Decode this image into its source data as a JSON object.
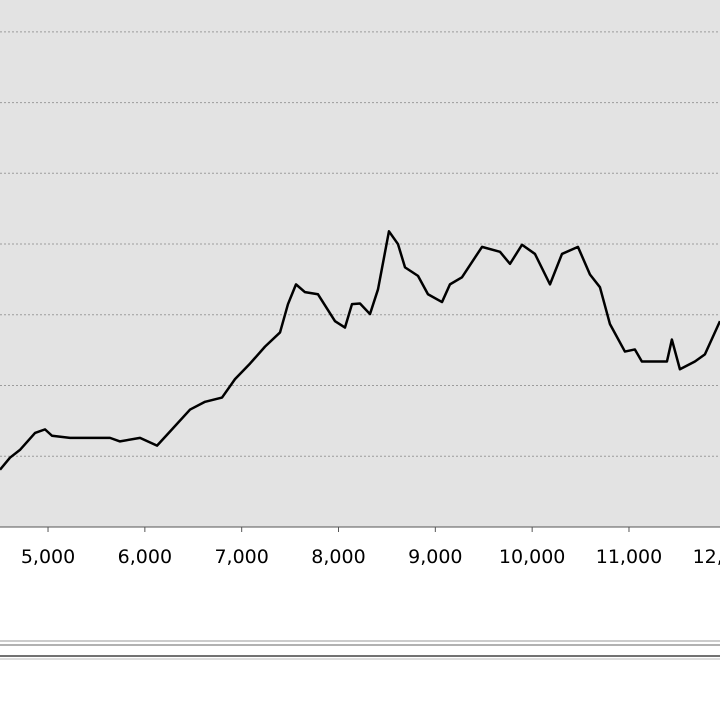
{
  "chart_data": {
    "type": "line",
    "x": [
      4504,
      4607,
      4710,
      4866,
      4969,
      5041,
      5227,
      5433,
      5640,
      5743,
      5950,
      6126,
      6260,
      6467,
      6622,
      6797,
      6931,
      7086,
      7241,
      7396,
      7478,
      7561,
      7654,
      7788,
      7964,
      8067,
      8139,
      8222,
      8325,
      8408,
      8521,
      8614,
      8687,
      8821,
      8924,
      9069,
      9151,
      9275,
      9482,
      9668,
      9771,
      9895,
      10029,
      10184,
      10308,
      10473,
      10597,
      10700,
      10803,
      10958,
      11061,
      11133,
      11392,
      11443,
      11526,
      11681,
      11784,
      11940
    ],
    "series": [
      {
        "color": "#000000",
        "values": [
          0.81,
          0.98,
          1.09,
          1.33,
          1.38,
          1.29,
          1.26,
          1.26,
          1.26,
          1.21,
          1.26,
          1.15,
          1.35,
          1.66,
          1.77,
          1.83,
          2.09,
          2.31,
          2.55,
          2.75,
          3.15,
          3.43,
          3.32,
          3.29,
          2.91,
          2.82,
          3.15,
          3.16,
          3.01,
          3.36,
          4.18,
          4.0,
          3.67,
          3.55,
          3.29,
          3.18,
          3.43,
          3.53,
          3.96,
          3.89,
          3.72,
          3.99,
          3.86,
          3.43,
          3.86,
          3.96,
          3.57,
          3.39,
          2.87,
          2.48,
          2.51,
          2.34,
          2.34,
          2.65,
          2.23,
          2.34,
          2.44,
          2.91
        ]
      }
    ],
    "xlim": [
      4504,
      11940
    ],
    "xticks": [
      {
        "value": 5000,
        "label": "5,000"
      },
      {
        "value": 6000,
        "label": "6,000"
      },
      {
        "value": 7000,
        "label": "7,000"
      },
      {
        "value": 8000,
        "label": "8,000"
      },
      {
        "value": 9000,
        "label": "9,000"
      },
      {
        "value": 10000,
        "label": "10,000"
      },
      {
        "value": 11000,
        "label": "11,000"
      },
      {
        "value": 12000,
        "label": "12,000"
      }
    ],
    "ylim": [
      0,
      7.45
    ],
    "yticks": [
      1,
      2,
      3,
      4,
      5,
      6,
      7
    ],
    "grid": true
  }
}
